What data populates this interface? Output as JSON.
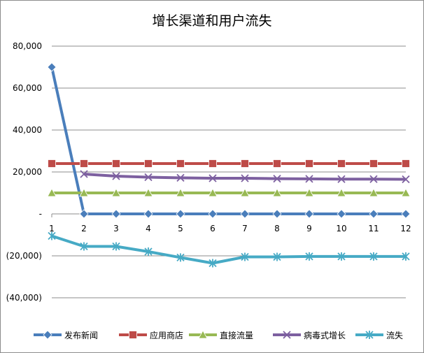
{
  "chart_data": {
    "type": "line",
    "title": "增长渠道和用户流失",
    "xlabel": "",
    "ylabel": "",
    "x": [
      "1",
      "2",
      "3",
      "4",
      "5",
      "6",
      "7",
      "8",
      "9",
      "10",
      "11",
      "12"
    ],
    "ylim": [
      -40000,
      80000
    ],
    "yticks": [
      80000,
      60000,
      40000,
      20000,
      0,
      -20000,
      -40000
    ],
    "ytick_labels": [
      "80,000",
      "60,000",
      "40,000",
      "20,000",
      "-",
      "(20,000)",
      "(40,000)"
    ],
    "grid": true,
    "legend_position": "bottom",
    "series": [
      {
        "name": "发布新闻",
        "color": "#4a7ebb",
        "marker": "diamond",
        "values": [
          70000,
          0,
          0,
          0,
          0,
          0,
          0,
          0,
          0,
          0,
          0,
          0
        ]
      },
      {
        "name": "应用商店",
        "color": "#be4b48",
        "marker": "square",
        "values": [
          24000,
          24000,
          24000,
          24000,
          24000,
          24000,
          24000,
          24000,
          24000,
          24000,
          24000,
          24000
        ]
      },
      {
        "name": "直接流量",
        "color": "#98b954",
        "marker": "triangle",
        "values": [
          10000,
          10000,
          10000,
          10000,
          10000,
          10000,
          10000,
          10000,
          10000,
          10000,
          10000,
          10000
        ]
      },
      {
        "name": "病毒式增长",
        "color": "#7d60a0",
        "marker": "x",
        "values": [
          null,
          19000,
          18000,
          17500,
          17200,
          17000,
          17000,
          16800,
          16700,
          16600,
          16600,
          16500
        ]
      },
      {
        "name": "流失",
        "color": "#46aac5",
        "marker": "star",
        "values": [
          -10500,
          -15500,
          -15500,
          -18000,
          -20800,
          -23500,
          -20500,
          -20500,
          -20300,
          -20300,
          -20300,
          -20300
        ]
      }
    ]
  }
}
